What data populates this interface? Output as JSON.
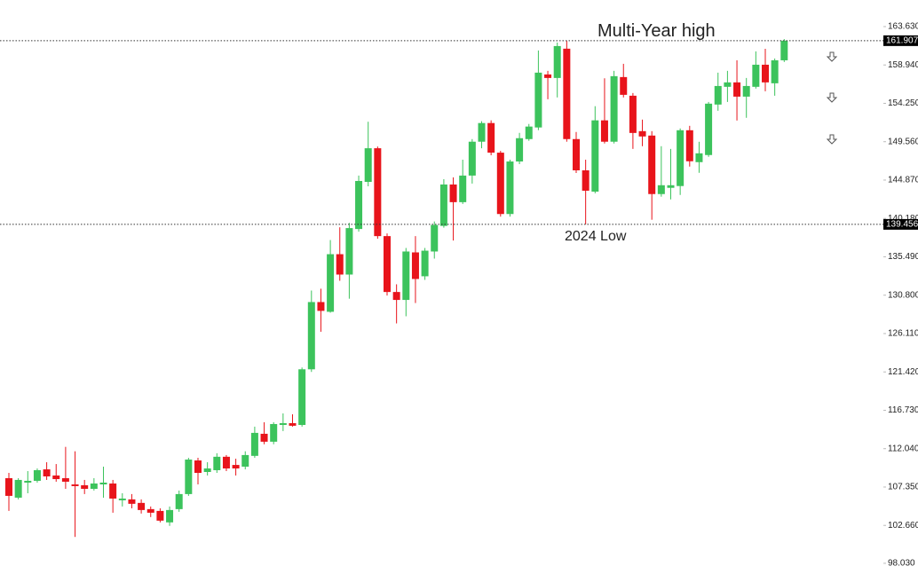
{
  "chart_data": {
    "type": "candlestick",
    "categories": [
      null,
      null,
      null,
      null,
      null,
      null,
      null,
      null,
      null,
      null,
      null,
      null,
      null,
      null,
      null,
      null,
      null,
      null,
      null,
      null,
      null,
      null,
      null,
      null,
      null,
      null,
      null,
      null,
      null,
      null,
      null,
      null,
      null,
      null,
      null,
      null,
      null,
      null,
      null,
      null,
      null,
      null,
      null,
      null,
      null,
      null,
      null,
      null,
      null,
      null,
      null,
      null,
      null,
      null,
      null,
      null,
      null,
      null,
      null,
      null,
      null,
      null,
      null,
      null,
      null,
      null,
      null,
      null,
      null,
      null,
      null,
      null,
      null,
      null,
      null,
      null,
      null,
      null,
      null,
      null,
      null,
      null,
      null
    ],
    "open": [
      108.43,
      106.05,
      107.89,
      108.11,
      109.51,
      108.76,
      108.43,
      107.67,
      107.57,
      107.13,
      107.67,
      107.78,
      105.73,
      105.84,
      105.41,
      104.65,
      104.43,
      103.03,
      104.65,
      106.49,
      110.6,
      109.19,
      109.41,
      111.05,
      110.05,
      109.84,
      111.16,
      113.86,
      112.89,
      114.94,
      115.16,
      114.94,
      121.74,
      129.96,
      128.77,
      135.81,
      133.32,
      138.89,
      144.65,
      148.76,
      138.02,
      131.19,
      130.22,
      136.03,
      133.11,
      136.14,
      139.27,
      144.33,
      142.17,
      145.42,
      149.56,
      151.84,
      148.22,
      140.72,
      147.14,
      149.88,
      151.3,
      157.78,
      157.35,
      160.93,
      149.88,
      146.06,
      143.46,
      152.17,
      149.56,
      157.46,
      155.18,
      150.85,
      150.31,
      143.16,
      143.92,
      144.14,
      150.96,
      147.06,
      147.93,
      154.1,
      156.27,
      156.81,
      155.07,
      156.27,
      158.97,
      156.7,
      159.51
    ],
    "high": [
      109.08,
      108.43,
      109.3,
      109.62,
      110.38,
      110.16,
      112.26,
      111.72,
      108.22,
      108.43,
      109.84,
      108.22,
      106.59,
      106.49,
      105.84,
      104.97,
      104.75,
      104.97,
      106.92,
      110.92,
      110.92,
      110.38,
      111.48,
      111.26,
      110.81,
      111.72,
      114.73,
      115.27,
      115.27,
      116.35,
      116.24,
      121.96,
      131.37,
      131.59,
      137.54,
      139.1,
      139.64,
      145.42,
      152.0,
      148.97,
      138.35,
      132.13,
      136.57,
      138.02,
      136.57,
      139.81,
      144.98,
      145.2,
      147.36,
      149.88,
      152.06,
      152.17,
      148.44,
      147.36,
      150.64,
      151.73,
      160.71,
      158.22,
      161.68,
      161.9,
      150.75,
      147.36,
      153.9,
      157.31,
      158.22,
      159.08,
      155.51,
      152.26,
      150.85,
      149.01,
      148.68,
      151.18,
      151.5,
      149.55,
      154.42,
      158.0,
      158.22,
      159.51,
      157.35,
      160.6,
      160.92,
      159.73,
      162.1
    ],
    "low": [
      104.43,
      105.84,
      106.59,
      107.89,
      108.22,
      108.0,
      107.13,
      101.25,
      106.49,
      106.92,
      106.05,
      104.21,
      104.97,
      104.75,
      104.11,
      103.68,
      103.03,
      102.6,
      104.32,
      106.27,
      107.67,
      108.76,
      109.08,
      109.3,
      108.76,
      109.51,
      110.92,
      112.58,
      112.58,
      114.19,
      114.73,
      114.73,
      121.42,
      126.33,
      128.66,
      132.56,
      130.37,
      138.56,
      144.11,
      137.7,
      130.76,
      127.35,
      128.22,
      129.84,
      132.67,
      135.27,
      139.05,
      137.48,
      141.95,
      144.44,
      148.76,
      147.9,
      140.4,
      140.4,
      146.82,
      149.67,
      150.97,
      154.75,
      154.97,
      149.56,
      145.74,
      139.46,
      143.25,
      149.34,
      149.34,
      154.97,
      148.68,
      149.01,
      140.02,
      142.84,
      142.51,
      143.05,
      146.52,
      145.76,
      147.71,
      153.34,
      154.42,
      152.15,
      152.48,
      156.05,
      155.72,
      155.18,
      159.3
    ],
    "close": [
      106.27,
      108.22,
      108.11,
      109.41,
      108.65,
      108.32,
      108.0,
      107.46,
      107.13,
      107.78,
      107.89,
      105.94,
      105.94,
      105.3,
      104.54,
      104.21,
      103.24,
      104.54,
      106.49,
      110.71,
      109.08,
      109.62,
      111.05,
      109.62,
      109.62,
      111.26,
      113.97,
      112.89,
      115.05,
      115.16,
      114.84,
      121.74,
      129.96,
      128.88,
      135.81,
      133.32,
      139.0,
      144.76,
      148.76,
      138.02,
      131.19,
      130.22,
      136.14,
      132.78,
      136.24,
      139.38,
      144.33,
      142.17,
      145.42,
      149.56,
      151.84,
      148.22,
      140.72,
      147.14,
      149.99,
      151.41,
      158.0,
      157.35,
      161.25,
      149.88,
      146.06,
      143.57,
      152.17,
      149.56,
      157.57,
      155.29,
      150.63,
      150.2,
      143.16,
      144.24,
      144.24,
      150.96,
      147.17,
      148.14,
      154.21,
      156.37,
      156.81,
      155.07,
      156.37,
      158.97,
      156.81,
      159.51,
      161.91
    ],
    "up_color": "#3cc35c",
    "down_color": "#e8141b",
    "ylim": [
      96.72,
      166.88
    ],
    "yticks": [
      {
        "value": 163.63,
        "label": "163.630"
      },
      {
        "value": 158.94,
        "label": "158.940"
      },
      {
        "value": 154.25,
        "label": "154.250"
      },
      {
        "value": 149.56,
        "label": "149.560"
      },
      {
        "value": 144.87,
        "label": "144.870"
      },
      {
        "value": 140.18,
        "label": "140.180"
      },
      {
        "value": 135.49,
        "label": "135.490"
      },
      {
        "value": 130.8,
        "label": "130.800"
      },
      {
        "value": 126.11,
        "label": "126.110"
      },
      {
        "value": 121.42,
        "label": "121.420"
      },
      {
        "value": 116.73,
        "label": "116.730"
      },
      {
        "value": 112.04,
        "label": "112.040"
      },
      {
        "value": 107.35,
        "label": "107.350"
      },
      {
        "value": 102.66,
        "label": "102.660"
      },
      {
        "value": 98.03,
        "label": "98.030"
      }
    ],
    "grid": false,
    "levels": [
      {
        "value": 161.907,
        "label": "161.907",
        "text": "Multi-Year high"
      },
      {
        "value": 139.456,
        "label": "139.456",
        "text": "2024 Low"
      }
    ]
  }
}
